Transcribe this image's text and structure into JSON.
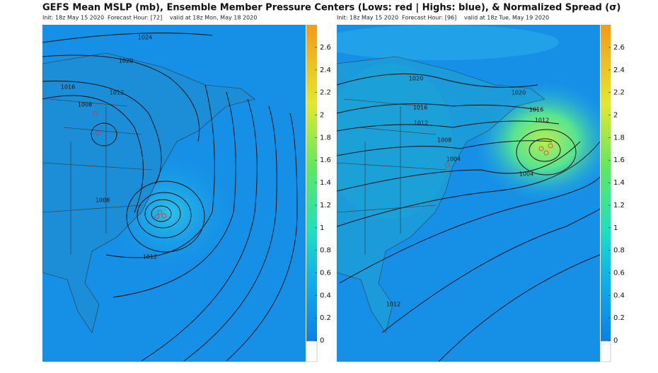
{
  "title": "GEFS Mean MSLP (mb), Ensemble Member Pressure Centers (Lows: red | Highs: blue), & Normalized Spread (σ)",
  "panels": [
    {
      "init": "Init: 18z May 15 2020",
      "forecast_hour": "Forecast Hour: [72]",
      "valid": "valid at 18z Mon, May 18 2020",
      "contour_labels": [
        "1024",
        "1020",
        "1016",
        "1012",
        "1008",
        "1008",
        "1012"
      ],
      "colorbar_ticks": [
        0,
        0.2,
        0.4,
        0.6,
        0.8,
        1,
        1.2,
        1.4,
        1.6,
        1.8,
        2,
        2.2,
        2.4,
        2.6
      ]
    },
    {
      "init": "Init: 18z May 15 2020",
      "forecast_hour": "Forecast Hour: [96]",
      "valid": "valid at 18z Tue, May 19 2020",
      "contour_labels": [
        "1020",
        "1016",
        "1012",
        "1008",
        "1004",
        "1020",
        "1016",
        "1012",
        "1004",
        "1012"
      ],
      "colorbar_ticks": [
        0,
        0.2,
        0.4,
        0.6,
        0.8,
        1,
        1.2,
        1.4,
        1.6,
        1.8,
        2,
        2.2,
        2.4,
        2.6
      ]
    }
  ]
}
